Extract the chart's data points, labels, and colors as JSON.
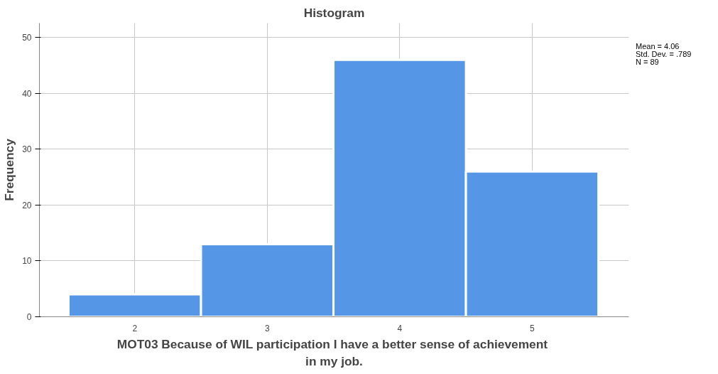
{
  "chart_data": {
    "type": "histogram",
    "title": "Histogram",
    "xlabel": "MOT03  Because of WIL participation I have a better sense of achievement in my job.",
    "ylabel": "Frequency",
    "bins": [
      1.5,
      2.5,
      3.5,
      4.5,
      5.5
    ],
    "values": [
      4,
      13,
      46,
      26
    ],
    "color": "#5596e6",
    "xlim": [
      1.28,
      5.73
    ],
    "xticks": [
      2,
      3,
      4,
      5
    ],
    "ylim": [
      0,
      52.6
    ],
    "yticks": [
      0,
      10,
      20,
      30,
      40,
      50
    ],
    "grid": true,
    "annotations": [
      "Mean = 4.06",
      "Std. Dev. = .789",
      "N = 89"
    ]
  }
}
